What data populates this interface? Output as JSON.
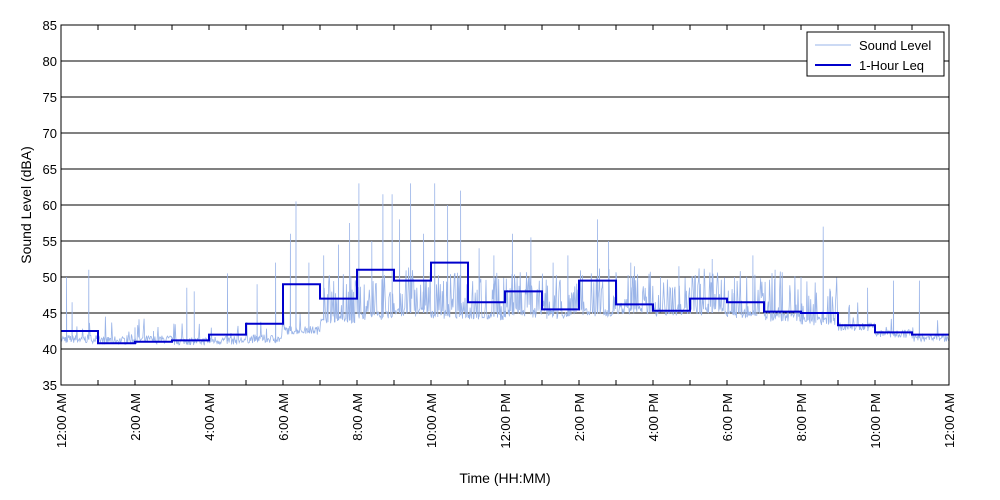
{
  "chart_data": {
    "type": "line",
    "xlabel": "Time (HH:MM)",
    "ylabel": "Sound Level (dBA)",
    "xlim": [
      0,
      24
    ],
    "ylim": [
      35,
      85
    ],
    "ytick_values": [
      35,
      40,
      45,
      50,
      55,
      60,
      65,
      70,
      75,
      80,
      85
    ],
    "ytick_labels": [
      "35",
      "40",
      "45",
      "50",
      "55",
      "60",
      "65",
      "70",
      "75",
      "80",
      "85"
    ],
    "xtick_values": [
      0,
      2,
      4,
      6,
      8,
      10,
      12,
      14,
      16,
      18,
      20,
      22,
      24
    ],
    "xtick_labels": [
      "12:00 AM",
      "2:00 AM",
      "4:00 AM",
      "6:00 AM",
      "8:00 AM",
      "10:00 AM",
      "12:00 PM",
      "2:00 PM",
      "4:00 PM",
      "6:00 PM",
      "8:00 PM",
      "10:00 PM",
      "12:00 AM"
    ],
    "grid": "horizontal",
    "legend_position": "top-right",
    "series": [
      {
        "name": "Sound Level",
        "style": "thin-light-blue",
        "color": "#9ab4e8",
        "hourly_baseline": [
          40.8,
          40.6,
          40.7,
          40.5,
          40.6,
          40.8,
          42.0,
          43.5,
          44.0,
          44.5,
          44.2,
          44.0,
          44.3,
          44.1,
          44.5,
          44.8,
          44.6,
          44.5,
          44.3,
          43.8,
          43.2,
          42.5,
          41.5,
          41.0
        ],
        "peaks": [
          {
            "x": 0.15,
            "y": 50.0
          },
          {
            "x": 0.3,
            "y": 46.5
          },
          {
            "x": 0.75,
            "y": 51.0
          },
          {
            "x": 2.0,
            "y": 43.0
          },
          {
            "x": 2.5,
            "y": 42.5
          },
          {
            "x": 3.4,
            "y": 48.5
          },
          {
            "x": 3.6,
            "y": 48.0
          },
          {
            "x": 4.5,
            "y": 50.5
          },
          {
            "x": 5.3,
            "y": 49.0
          },
          {
            "x": 5.8,
            "y": 52.0
          },
          {
            "x": 6.2,
            "y": 56.0
          },
          {
            "x": 6.35,
            "y": 60.5
          },
          {
            "x": 6.7,
            "y": 52.0
          },
          {
            "x": 7.1,
            "y": 53.0
          },
          {
            "x": 7.5,
            "y": 54.5
          },
          {
            "x": 7.8,
            "y": 57.5
          },
          {
            "x": 8.05,
            "y": 63.0
          },
          {
            "x": 8.4,
            "y": 55.0
          },
          {
            "x": 8.7,
            "y": 61.5
          },
          {
            "x": 8.95,
            "y": 61.5
          },
          {
            "x": 9.15,
            "y": 58.0
          },
          {
            "x": 9.45,
            "y": 63.0
          },
          {
            "x": 9.8,
            "y": 56.0
          },
          {
            "x": 10.1,
            "y": 63.0
          },
          {
            "x": 10.45,
            "y": 60.0
          },
          {
            "x": 10.8,
            "y": 62.0
          },
          {
            "x": 11.3,
            "y": 54.0
          },
          {
            "x": 11.7,
            "y": 53.0
          },
          {
            "x": 12.2,
            "y": 56.0
          },
          {
            "x": 12.7,
            "y": 55.5
          },
          {
            "x": 13.3,
            "y": 52.0
          },
          {
            "x": 13.7,
            "y": 53.0
          },
          {
            "x": 14.5,
            "y": 58.0
          },
          {
            "x": 14.8,
            "y": 55.0
          },
          {
            "x": 15.4,
            "y": 52.0
          },
          {
            "x": 16.2,
            "y": 50.0
          },
          {
            "x": 16.7,
            "y": 51.5
          },
          {
            "x": 17.6,
            "y": 52.5
          },
          {
            "x": 18.2,
            "y": 50.0
          },
          {
            "x": 18.7,
            "y": 53.0
          },
          {
            "x": 19.3,
            "y": 51.0
          },
          {
            "x": 20.0,
            "y": 50.0
          },
          {
            "x": 20.6,
            "y": 57.0
          },
          {
            "x": 20.8,
            "y": 48.0
          },
          {
            "x": 21.8,
            "y": 48.5
          },
          {
            "x": 22.5,
            "y": 49.5
          },
          {
            "x": 23.2,
            "y": 49.5
          }
        ]
      },
      {
        "name": "1-Hour Leq",
        "style": "step",
        "color": "#0000cc",
        "values": [
          42.5,
          40.8,
          41.0,
          41.2,
          42.0,
          43.5,
          49.0,
          47.0,
          51.0,
          49.5,
          52.0,
          46.5,
          48.0,
          45.5,
          49.5,
          46.2,
          45.3,
          47.0,
          46.5,
          45.2,
          45.0,
          43.3,
          42.3,
          42.0
        ]
      }
    ]
  }
}
